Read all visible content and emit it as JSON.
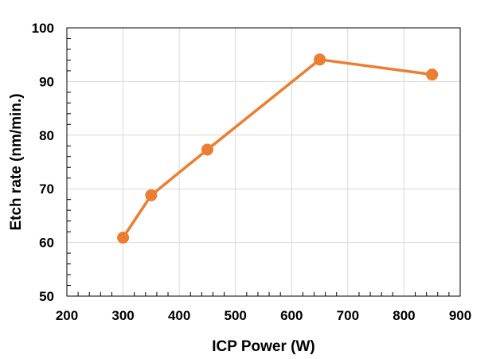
{
  "chart_data": {
    "type": "line",
    "xlabel": "ICP Power (W)",
    "ylabel": "Etch rate (nm/min.)",
    "xlim": [
      200,
      900
    ],
    "ylim": [
      50,
      100
    ],
    "xticks": [
      200,
      300,
      400,
      500,
      600,
      700,
      800,
      900
    ],
    "yticks": [
      50,
      60,
      70,
      80,
      90,
      100
    ],
    "grid": true,
    "series": [
      {
        "x": [
          300,
          350,
          450,
          650,
          850
        ],
        "y": [
          60.9,
          68.8,
          77.3,
          94.1,
          91.3
        ],
        "color": "#ED7D31",
        "marker": "circle"
      }
    ]
  }
}
